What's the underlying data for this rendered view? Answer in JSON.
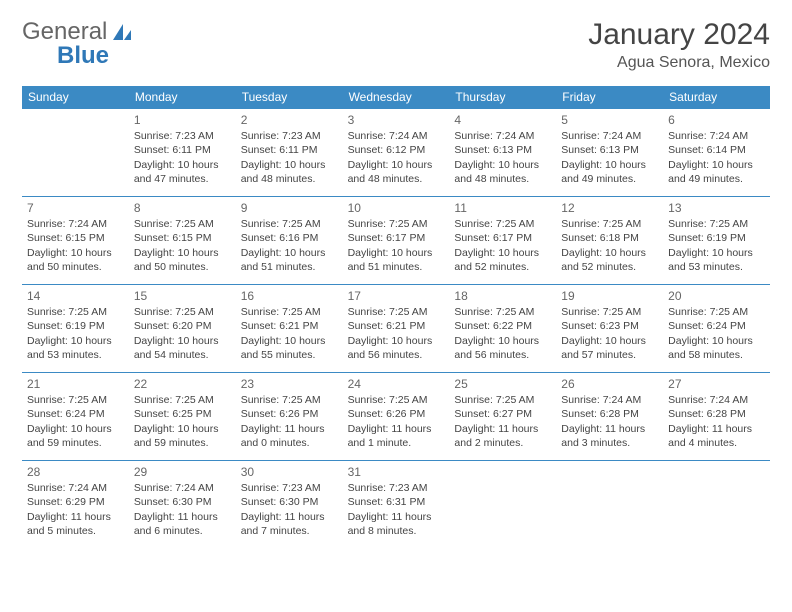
{
  "brand": {
    "part1": "General",
    "part2": "Blue"
  },
  "title": "January 2024",
  "location": "Agua Senora, Mexico",
  "colors": {
    "header_bg": "#3b8ac4",
    "header_text": "#ffffff",
    "border": "#3b8ac4",
    "body_text": "#444444",
    "brand_gray": "#666666",
    "brand_blue": "#2f78b7"
  },
  "day_headers": [
    "Sunday",
    "Monday",
    "Tuesday",
    "Wednesday",
    "Thursday",
    "Friday",
    "Saturday"
  ],
  "leading_blanks": 1,
  "days": [
    {
      "n": 1,
      "sr": "7:23 AM",
      "ss": "6:11 PM",
      "dl": "10 hours and 47 minutes."
    },
    {
      "n": 2,
      "sr": "7:23 AM",
      "ss": "6:11 PM",
      "dl": "10 hours and 48 minutes."
    },
    {
      "n": 3,
      "sr": "7:24 AM",
      "ss": "6:12 PM",
      "dl": "10 hours and 48 minutes."
    },
    {
      "n": 4,
      "sr": "7:24 AM",
      "ss": "6:13 PM",
      "dl": "10 hours and 48 minutes."
    },
    {
      "n": 5,
      "sr": "7:24 AM",
      "ss": "6:13 PM",
      "dl": "10 hours and 49 minutes."
    },
    {
      "n": 6,
      "sr": "7:24 AM",
      "ss": "6:14 PM",
      "dl": "10 hours and 49 minutes."
    },
    {
      "n": 7,
      "sr": "7:24 AM",
      "ss": "6:15 PM",
      "dl": "10 hours and 50 minutes."
    },
    {
      "n": 8,
      "sr": "7:25 AM",
      "ss": "6:15 PM",
      "dl": "10 hours and 50 minutes."
    },
    {
      "n": 9,
      "sr": "7:25 AM",
      "ss": "6:16 PM",
      "dl": "10 hours and 51 minutes."
    },
    {
      "n": 10,
      "sr": "7:25 AM",
      "ss": "6:17 PM",
      "dl": "10 hours and 51 minutes."
    },
    {
      "n": 11,
      "sr": "7:25 AM",
      "ss": "6:17 PM",
      "dl": "10 hours and 52 minutes."
    },
    {
      "n": 12,
      "sr": "7:25 AM",
      "ss": "6:18 PM",
      "dl": "10 hours and 52 minutes."
    },
    {
      "n": 13,
      "sr": "7:25 AM",
      "ss": "6:19 PM",
      "dl": "10 hours and 53 minutes."
    },
    {
      "n": 14,
      "sr": "7:25 AM",
      "ss": "6:19 PM",
      "dl": "10 hours and 53 minutes."
    },
    {
      "n": 15,
      "sr": "7:25 AM",
      "ss": "6:20 PM",
      "dl": "10 hours and 54 minutes."
    },
    {
      "n": 16,
      "sr": "7:25 AM",
      "ss": "6:21 PM",
      "dl": "10 hours and 55 minutes."
    },
    {
      "n": 17,
      "sr": "7:25 AM",
      "ss": "6:21 PM",
      "dl": "10 hours and 56 minutes."
    },
    {
      "n": 18,
      "sr": "7:25 AM",
      "ss": "6:22 PM",
      "dl": "10 hours and 56 minutes."
    },
    {
      "n": 19,
      "sr": "7:25 AM",
      "ss": "6:23 PM",
      "dl": "10 hours and 57 minutes."
    },
    {
      "n": 20,
      "sr": "7:25 AM",
      "ss": "6:24 PM",
      "dl": "10 hours and 58 minutes."
    },
    {
      "n": 21,
      "sr": "7:25 AM",
      "ss": "6:24 PM",
      "dl": "10 hours and 59 minutes."
    },
    {
      "n": 22,
      "sr": "7:25 AM",
      "ss": "6:25 PM",
      "dl": "10 hours and 59 minutes."
    },
    {
      "n": 23,
      "sr": "7:25 AM",
      "ss": "6:26 PM",
      "dl": "11 hours and 0 minutes."
    },
    {
      "n": 24,
      "sr": "7:25 AM",
      "ss": "6:26 PM",
      "dl": "11 hours and 1 minute."
    },
    {
      "n": 25,
      "sr": "7:25 AM",
      "ss": "6:27 PM",
      "dl": "11 hours and 2 minutes."
    },
    {
      "n": 26,
      "sr": "7:24 AM",
      "ss": "6:28 PM",
      "dl": "11 hours and 3 minutes."
    },
    {
      "n": 27,
      "sr": "7:24 AM",
      "ss": "6:28 PM",
      "dl": "11 hours and 4 minutes."
    },
    {
      "n": 28,
      "sr": "7:24 AM",
      "ss": "6:29 PM",
      "dl": "11 hours and 5 minutes."
    },
    {
      "n": 29,
      "sr": "7:24 AM",
      "ss": "6:30 PM",
      "dl": "11 hours and 6 minutes."
    },
    {
      "n": 30,
      "sr": "7:23 AM",
      "ss": "6:30 PM",
      "dl": "11 hours and 7 minutes."
    },
    {
      "n": 31,
      "sr": "7:23 AM",
      "ss": "6:31 PM",
      "dl": "11 hours and 8 minutes."
    }
  ],
  "labels": {
    "sunrise": "Sunrise:",
    "sunset": "Sunset:",
    "daylight": "Daylight:"
  }
}
